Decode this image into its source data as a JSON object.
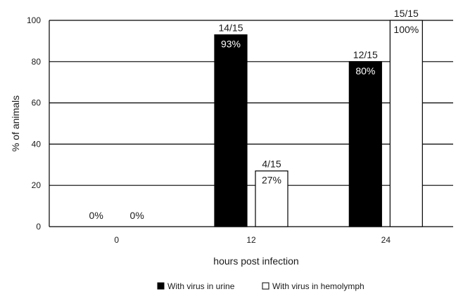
{
  "chart_data": {
    "type": "bar",
    "categories": [
      "0",
      "12",
      "24"
    ],
    "series": [
      {
        "name": "With virus in urine",
        "values": [
          0,
          93,
          80
        ],
        "labels_inside": [
          "",
          "93%",
          "80%"
        ],
        "labels_above": [
          "0%",
          "14/15",
          "12/15"
        ],
        "color": "#000000"
      },
      {
        "name": "With virus in hemolymph",
        "values": [
          0,
          27,
          100
        ],
        "labels_inside": [
          "",
          "27%",
          "100%"
        ],
        "labels_above": [
          "0%",
          "4/15",
          "15/15"
        ],
        "color": "#ffffff"
      }
    ],
    "xlabel": "hours post infection",
    "ylabel": "% of animals",
    "ylim": [
      0,
      100
    ],
    "yticks": [
      0,
      20,
      40,
      60,
      80,
      100
    ],
    "grid": true,
    "legend_position": "bottom"
  }
}
